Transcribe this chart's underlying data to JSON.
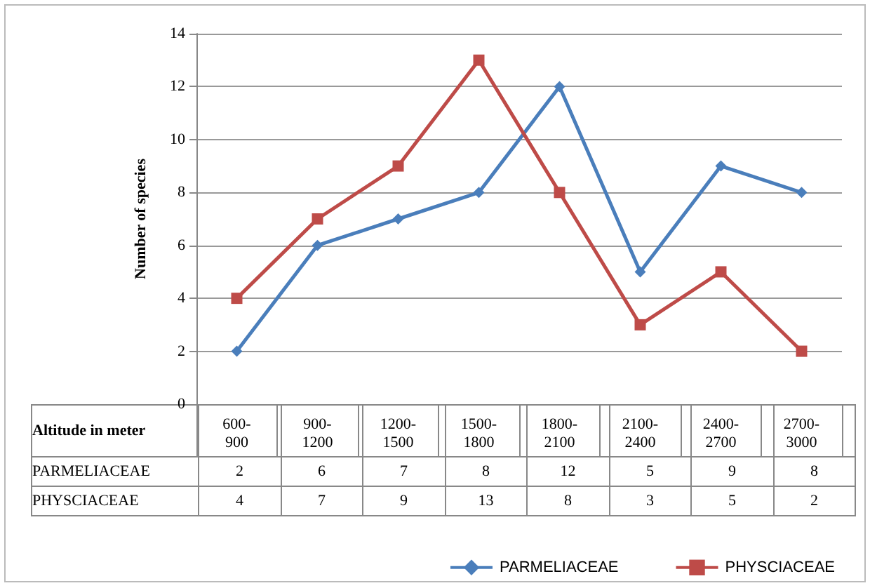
{
  "chart_data": {
    "type": "line",
    "ylabel": "Number of species",
    "xlabel": "Altitude in meter",
    "categories": [
      "600-900",
      "900-1200",
      "1200-1500",
      "1500-1800",
      "1800-2100",
      "2100-2400",
      "2400-2700",
      "2700-3000"
    ],
    "series": [
      {
        "name": "PARMELIACEAE",
        "color": "#4a7ebb",
        "marker": "diamond",
        "values": [
          2,
          6,
          7,
          8,
          12,
          5,
          9,
          8
        ]
      },
      {
        "name": "PHYSCIACEAE",
        "color": "#be4b48",
        "marker": "square",
        "values": [
          4,
          7,
          9,
          13,
          8,
          3,
          5,
          2
        ]
      }
    ],
    "ylim": [
      0,
      14
    ],
    "yticks": [
      0,
      2,
      4,
      6,
      8,
      10,
      12,
      14
    ],
    "grid": "y",
    "legend": "bottom right",
    "data_labels": true,
    "line_style": "solid"
  }
}
